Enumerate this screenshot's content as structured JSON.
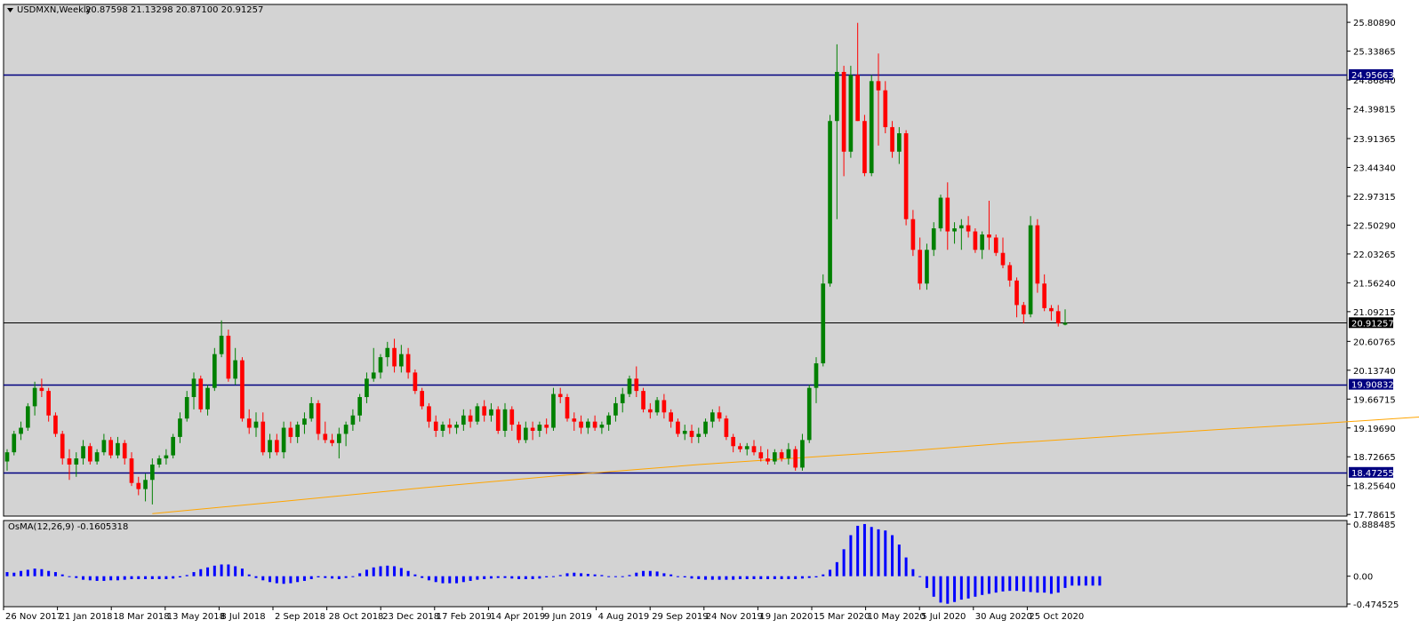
{
  "header": {
    "symbol_title": "USDMXN,Weekly",
    "ohlc": "20.87598 21.13298 20.87100 20.91257"
  },
  "indicator": {
    "title": "OsMA(12,26,9) -0.1605318"
  },
  "colors": {
    "plot_bg": "#d3d3d3",
    "bull": "#008000",
    "bear": "#ff0000",
    "level_line": "#000080",
    "price_line": "#000000",
    "ma_line": "#ffa500",
    "osma_bar": "#0000ff"
  },
  "chart_data": [
    {
      "type": "candlestick",
      "title": "USDMXN,Weekly",
      "y_ticks": [
        "25.80890",
        "25.33865",
        "24.86840",
        "24.39815",
        "23.91365",
        "23.44340",
        "22.97315",
        "22.50290",
        "22.03265",
        "21.56240",
        "21.09215",
        "20.60765",
        "20.13740",
        "19.66715",
        "19.19690",
        "18.72665",
        "18.25640",
        "17.78615"
      ],
      "ylim": [
        17.76,
        26.1
      ],
      "x_ticks": [
        "26 Nov 2017",
        "21 Jan 2018",
        "18 Mar 2018",
        "13 May 2018",
        "8 Jul 2018",
        "2 Sep 2018",
        "28 Oct 2018",
        "23 Dec 2018",
        "17 Feb 2019",
        "14 Apr 2019",
        "9 Jun 2019",
        "4 Aug 2019",
        "29 Sep 2019",
        "24 Nov 2019",
        "19 Jan 2020",
        "15 Mar 2020",
        "10 May 2020",
        "5 Jul 2020",
        "30 Aug 2020",
        "25 Oct 2020"
      ],
      "levels": [
        {
          "label": "24.95663",
          "value": 24.95663,
          "color": "#000080"
        },
        {
          "label": "19.90832",
          "value": 19.90832,
          "color": "#000080"
        },
        {
          "label": "18.47255",
          "value": 18.47255,
          "color": "#000080"
        },
        {
          "label": "20.91257",
          "value": 20.91257,
          "color": "#000000"
        }
      ],
      "candles": [
        [
          18.65,
          18.85,
          18.5,
          18.8
        ],
        [
          18.8,
          19.15,
          18.75,
          19.1
        ],
        [
          19.1,
          19.3,
          19.0,
          19.2
        ],
        [
          19.2,
          19.6,
          19.15,
          19.55
        ],
        [
          19.55,
          19.95,
          19.4,
          19.85
        ],
        [
          19.85,
          20.0,
          19.7,
          19.8
        ],
        [
          19.8,
          19.85,
          19.3,
          19.4
        ],
        [
          19.4,
          19.45,
          19.05,
          19.1
        ],
        [
          19.1,
          19.15,
          18.6,
          18.7
        ],
        [
          18.7,
          18.85,
          18.35,
          18.6
        ],
        [
          18.6,
          18.8,
          18.4,
          18.7
        ],
        [
          18.7,
          19.0,
          18.6,
          18.9
        ],
        [
          18.9,
          18.95,
          18.6,
          18.65
        ],
        [
          18.65,
          18.85,
          18.6,
          18.8
        ],
        [
          18.8,
          19.1,
          18.75,
          19.0
        ],
        [
          19.0,
          19.05,
          18.7,
          18.75
        ],
        [
          18.75,
          19.05,
          18.7,
          18.95
        ],
        [
          18.95,
          19.0,
          18.6,
          18.7
        ],
        [
          18.7,
          18.8,
          18.25,
          18.3
        ],
        [
          18.3,
          18.4,
          18.1,
          18.2
        ],
        [
          18.2,
          18.45,
          18.0,
          18.35
        ],
        [
          18.35,
          18.7,
          17.95,
          18.6
        ],
        [
          18.6,
          18.75,
          18.55,
          18.7
        ],
        [
          18.7,
          18.85,
          18.6,
          18.75
        ],
        [
          18.75,
          19.1,
          18.7,
          19.05
        ],
        [
          19.05,
          19.45,
          18.95,
          19.35
        ],
        [
          19.35,
          19.8,
          19.3,
          19.7
        ],
        [
          19.7,
          20.1,
          19.5,
          20.0
        ],
        [
          20.0,
          20.05,
          19.45,
          19.5
        ],
        [
          19.5,
          19.9,
          19.4,
          19.85
        ],
        [
          19.85,
          20.5,
          19.8,
          20.4
        ],
        [
          20.4,
          20.95,
          20.35,
          20.7
        ],
        [
          20.7,
          20.8,
          19.95,
          20.0
        ],
        [
          20.0,
          20.5,
          19.9,
          20.3
        ],
        [
          20.3,
          20.35,
          19.3,
          19.35
        ],
        [
          19.35,
          19.5,
          19.1,
          19.2
        ],
        [
          19.2,
          19.45,
          19.05,
          19.3
        ],
        [
          19.3,
          19.45,
          18.75,
          18.8
        ],
        [
          18.8,
          19.1,
          18.7,
          19.0
        ],
        [
          19.0,
          19.1,
          18.75,
          18.8
        ],
        [
          18.8,
          19.3,
          18.7,
          19.2
        ],
        [
          19.2,
          19.3,
          18.95,
          19.05
        ],
        [
          19.05,
          19.3,
          18.95,
          19.25
        ],
        [
          19.25,
          19.45,
          19.1,
          19.35
        ],
        [
          19.35,
          19.7,
          19.3,
          19.6
        ],
        [
          19.6,
          19.65,
          19.0,
          19.1
        ],
        [
          19.1,
          19.3,
          18.95,
          19.0
        ],
        [
          19.0,
          19.1,
          18.9,
          18.95
        ],
        [
          18.95,
          19.2,
          18.7,
          19.1
        ],
        [
          19.1,
          19.3,
          18.9,
          19.25
        ],
        [
          19.25,
          19.5,
          19.15,
          19.4
        ],
        [
          19.4,
          19.75,
          19.3,
          19.7
        ],
        [
          19.7,
          20.1,
          19.6,
          20.0
        ],
        [
          20.0,
          20.5,
          19.95,
          20.1
        ],
        [
          20.1,
          20.4,
          20.0,
          20.35
        ],
        [
          20.35,
          20.6,
          20.2,
          20.5
        ],
        [
          20.5,
          20.65,
          20.1,
          20.2
        ],
        [
          20.2,
          20.55,
          20.1,
          20.4
        ],
        [
          20.4,
          20.5,
          20.0,
          20.1
        ],
        [
          20.1,
          20.15,
          19.75,
          19.8
        ],
        [
          19.8,
          19.85,
          19.5,
          19.55
        ],
        [
          19.55,
          19.6,
          19.2,
          19.3
        ],
        [
          19.3,
          19.4,
          19.05,
          19.15
        ],
        [
          19.15,
          19.3,
          19.05,
          19.25
        ],
        [
          19.25,
          19.35,
          19.1,
          19.2
        ],
        [
          19.2,
          19.3,
          19.1,
          19.25
        ],
        [
          19.25,
          19.5,
          19.15,
          19.4
        ],
        [
          19.4,
          19.5,
          19.2,
          19.3
        ],
        [
          19.3,
          19.6,
          19.25,
          19.55
        ],
        [
          19.55,
          19.65,
          19.3,
          19.4
        ],
        [
          19.4,
          19.6,
          19.3,
          19.5
        ],
        [
          19.5,
          19.55,
          19.1,
          19.15
        ],
        [
          19.15,
          19.6,
          19.05,
          19.5
        ],
        [
          19.5,
          19.55,
          19.15,
          19.25
        ],
        [
          19.25,
          19.3,
          18.95,
          19.0
        ],
        [
          19.0,
          19.3,
          18.95,
          19.2
        ],
        [
          19.2,
          19.3,
          19.0,
          19.15
        ],
        [
          19.15,
          19.3,
          19.05,
          19.25
        ],
        [
          19.25,
          19.35,
          19.1,
          19.2
        ],
        [
          19.2,
          19.85,
          19.15,
          19.75
        ],
        [
          19.75,
          19.85,
          19.6,
          19.7
        ],
        [
          19.7,
          19.75,
          19.3,
          19.35
        ],
        [
          19.35,
          19.45,
          19.15,
          19.3
        ],
        [
          19.3,
          19.4,
          19.1,
          19.2
        ],
        [
          19.2,
          19.35,
          19.1,
          19.3
        ],
        [
          19.3,
          19.4,
          19.15,
          19.2
        ],
        [
          19.2,
          19.3,
          19.1,
          19.25
        ],
        [
          19.25,
          19.45,
          19.15,
          19.4
        ],
        [
          19.4,
          19.7,
          19.3,
          19.6
        ],
        [
          19.6,
          19.85,
          19.45,
          19.75
        ],
        [
          19.75,
          20.05,
          19.7,
          20.0
        ],
        [
          20.0,
          20.2,
          19.7,
          19.8
        ],
        [
          19.8,
          19.85,
          19.45,
          19.5
        ],
        [
          19.5,
          19.6,
          19.35,
          19.45
        ],
        [
          19.45,
          19.7,
          19.4,
          19.65
        ],
        [
          19.65,
          19.75,
          19.35,
          19.45
        ],
        [
          19.45,
          19.5,
          19.2,
          19.3
        ],
        [
          19.3,
          19.35,
          19.05,
          19.1
        ],
        [
          19.1,
          19.25,
          19.0,
          19.15
        ],
        [
          19.15,
          19.25,
          18.95,
          19.05
        ],
        [
          19.05,
          19.2,
          18.95,
          19.1
        ],
        [
          19.1,
          19.35,
          19.05,
          19.3
        ],
        [
          19.3,
          19.5,
          19.2,
          19.45
        ],
        [
          19.45,
          19.55,
          19.3,
          19.35
        ],
        [
          19.35,
          19.4,
          19.0,
          19.05
        ],
        [
          19.05,
          19.1,
          18.8,
          18.9
        ],
        [
          18.9,
          18.95,
          18.8,
          18.85
        ],
        [
          18.85,
          18.95,
          18.75,
          18.9
        ],
        [
          18.9,
          19.0,
          18.75,
          18.8
        ],
        [
          18.8,
          18.9,
          18.65,
          18.7
        ],
        [
          18.7,
          18.85,
          18.6,
          18.65
        ],
        [
          18.65,
          18.85,
          18.6,
          18.8
        ],
        [
          18.8,
          18.85,
          18.65,
          18.7
        ],
        [
          18.7,
          18.95,
          18.6,
          18.85
        ],
        [
          18.85,
          18.9,
          18.5,
          18.55
        ],
        [
          18.55,
          19.1,
          18.5,
          19.0
        ],
        [
          19.0,
          19.9,
          18.95,
          19.85
        ],
        [
          19.85,
          20.35,
          19.6,
          20.25
        ],
        [
          20.25,
          21.7,
          20.2,
          21.55
        ],
        [
          21.55,
          24.3,
          21.5,
          24.2
        ],
        [
          24.2,
          25.45,
          22.6,
          25.0
        ],
        [
          25.0,
          25.1,
          23.3,
          23.7
        ],
        [
          23.7,
          25.1,
          23.6,
          24.95
        ],
        [
          24.95,
          25.8,
          24.2,
          24.2
        ],
        [
          24.2,
          24.3,
          23.3,
          23.35
        ],
        [
          23.35,
          24.95,
          23.3,
          24.85
        ],
        [
          24.85,
          25.3,
          23.8,
          24.7
        ],
        [
          24.7,
          24.85,
          24.0,
          24.1
        ],
        [
          24.1,
          24.2,
          23.6,
          23.7
        ],
        [
          23.7,
          24.1,
          23.5,
          24.0
        ],
        [
          24.0,
          24.05,
          22.5,
          22.6
        ],
        [
          22.6,
          22.75,
          22.0,
          22.1
        ],
        [
          22.1,
          22.3,
          21.45,
          21.55
        ],
        [
          21.55,
          22.2,
          21.45,
          22.1
        ],
        [
          22.1,
          22.55,
          22.0,
          22.45
        ],
        [
          22.45,
          23.0,
          22.4,
          22.95
        ],
        [
          22.95,
          23.2,
          22.1,
          22.4
        ],
        [
          22.4,
          22.55,
          22.2,
          22.45
        ],
        [
          22.45,
          22.6,
          22.1,
          22.5
        ],
        [
          22.5,
          22.65,
          22.3,
          22.4
        ],
        [
          22.4,
          22.45,
          22.05,
          22.1
        ],
        [
          22.1,
          22.4,
          21.95,
          22.35
        ],
        [
          22.35,
          22.9,
          22.1,
          22.3
        ],
        [
          22.3,
          22.35,
          22.0,
          22.05
        ],
        [
          22.05,
          22.3,
          21.8,
          21.85
        ],
        [
          21.85,
          21.9,
          21.5,
          21.6
        ],
        [
          21.6,
          21.65,
          21.0,
          21.2
        ],
        [
          21.2,
          21.25,
          20.9,
          21.05
        ],
        [
          21.05,
          22.65,
          21.0,
          22.5
        ],
        [
          22.5,
          22.6,
          21.4,
          21.55
        ],
        [
          21.55,
          21.7,
          21.1,
          21.15
        ],
        [
          21.15,
          21.2,
          20.95,
          21.1
        ],
        [
          21.1,
          21.2,
          20.85,
          20.9
        ],
        [
          20.88,
          21.13,
          20.87,
          20.91
        ]
      ],
      "ma": [
        [
          21,
          17.8
        ],
        [
          40,
          18.0
        ],
        [
          60,
          18.22
        ],
        [
          80,
          18.42
        ],
        [
          100,
          18.6
        ],
        [
          120,
          18.75
        ],
        [
          130,
          18.82
        ],
        [
          145,
          18.95
        ],
        [
          160,
          19.06
        ],
        [
          175,
          19.17
        ],
        [
          190,
          19.27
        ],
        [
          205,
          19.38
        ],
        [
          221,
          19.6
        ],
        [
          233,
          19.72
        ],
        [
          244,
          19.8
        ],
        [
          256,
          19.85
        ],
        [
          270,
          19.9
        ],
        [
          287,
          19.95
        ],
        [
          293,
          19.95
        ]
      ],
      "osma": {
        "values": [
          0.07,
          0.06,
          0.09,
          0.11,
          0.13,
          0.12,
          0.09,
          0.07,
          0.03,
          0.0,
          -0.03,
          -0.06,
          -0.07,
          -0.08,
          -0.08,
          -0.07,
          -0.07,
          -0.06,
          -0.05,
          -0.05,
          -0.05,
          -0.05,
          -0.05,
          -0.05,
          -0.04,
          -0.02,
          0.02,
          0.07,
          0.12,
          0.15,
          0.18,
          0.2,
          0.2,
          0.17,
          0.13,
          0.03,
          -0.03,
          -0.07,
          -0.1,
          -0.12,
          -0.13,
          -0.12,
          -0.1,
          -0.08,
          -0.05,
          -0.02,
          -0.03,
          -0.04,
          -0.05,
          -0.03,
          0.0,
          0.05,
          0.11,
          0.15,
          0.17,
          0.18,
          0.17,
          0.14,
          0.09,
          0.03,
          -0.03,
          -0.07,
          -0.1,
          -0.12,
          -0.12,
          -0.12,
          -0.1,
          -0.08,
          -0.06,
          -0.05,
          -0.04,
          -0.03,
          -0.03,
          -0.04,
          -0.05,
          -0.05,
          -0.05,
          -0.04,
          -0.02,
          0.0,
          0.02,
          0.05,
          0.06,
          0.05,
          0.04,
          0.03,
          0.02,
          0.0,
          -0.01,
          -0.01,
          0.02,
          0.06,
          0.09,
          0.09,
          0.08,
          0.05,
          0.03,
          0.0,
          -0.02,
          -0.04,
          -0.05,
          -0.06,
          -0.06,
          -0.06,
          -0.06,
          -0.06,
          -0.05,
          -0.05,
          -0.05,
          -0.05,
          -0.05,
          -0.05,
          -0.05,
          -0.05,
          -0.05,
          -0.04,
          -0.03,
          -0.02,
          0.03,
          0.11,
          0.24,
          0.46,
          0.7,
          0.86,
          0.89,
          0.84,
          0.8,
          0.78,
          0.7,
          0.54,
          0.32,
          0.12,
          0.0,
          -0.2,
          -0.35,
          -0.45,
          -0.47,
          -0.44,
          -0.4,
          -0.38,
          -0.35,
          -0.32,
          -0.3,
          -0.28,
          -0.26,
          -0.25,
          -0.25,
          -0.26,
          -0.27,
          -0.28,
          -0.28,
          -0.3,
          -0.28,
          -0.2,
          -0.16,
          -0.16,
          -0.16,
          -0.16,
          -0.16
        ],
        "y_ticks": [
          "0.888485",
          "0.00",
          "-0.474525"
        ],
        "ylim": [
          -0.52,
          0.95
        ]
      }
    }
  ]
}
